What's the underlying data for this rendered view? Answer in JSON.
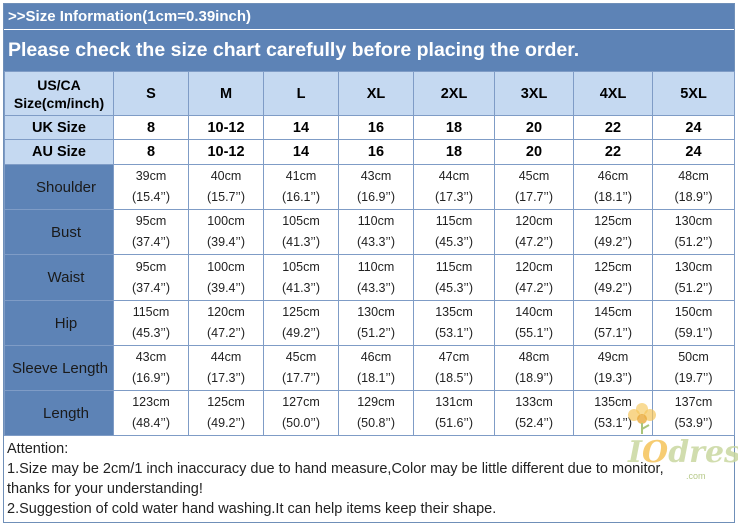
{
  "header": {
    "info_title": ">>Size Information(1cm=0.39inch)",
    "notice": "Please check the size chart carefully before placing the order."
  },
  "table": {
    "corner_line1": "US/CA",
    "corner_line2": "Size(cm/inch)",
    "sizes": [
      "S",
      "M",
      "L",
      "XL",
      "2XL",
      "3XL",
      "4XL",
      "5XL"
    ],
    "uk": {
      "label": "UK Size",
      "values": [
        "8",
        "10-12",
        "14",
        "16",
        "18",
        "20",
        "22",
        "24"
      ]
    },
    "au": {
      "label": "AU Size",
      "values": [
        "8",
        "10-12",
        "14",
        "16",
        "18",
        "20",
        "22",
        "24"
      ]
    },
    "measurements": [
      {
        "label": "Shoulder",
        "cm": [
          "39cm",
          "40cm",
          "41cm",
          "43cm",
          "44cm",
          "45cm",
          "46cm",
          "48cm"
        ],
        "inch": [
          "(15.4’’)",
          "(15.7’’)",
          "(16.1’’)",
          "(16.9’’)",
          "(17.3’’)",
          "(17.7’’)",
          "(18.1’’)",
          "(18.9’’)"
        ]
      },
      {
        "label": "Bust",
        "cm": [
          "95cm",
          "100cm",
          "105cm",
          "110cm",
          "115cm",
          "120cm",
          "125cm",
          "130cm"
        ],
        "inch": [
          "(37.4’’)",
          "(39.4’’)",
          "(41.3’’)",
          "(43.3’’)",
          "(45.3’’)",
          "(47.2’’)",
          "(49.2’’)",
          "(51.2’’)"
        ]
      },
      {
        "label": "Waist",
        "cm": [
          "95cm",
          "100cm",
          "105cm",
          "110cm",
          "115cm",
          "120cm",
          "125cm",
          "130cm"
        ],
        "inch": [
          "(37.4’’)",
          "(39.4’’)",
          "(41.3’’)",
          "(43.3’’)",
          "(45.3’’)",
          "(47.2’’)",
          "(49.2’’)",
          "(51.2’’)"
        ]
      },
      {
        "label": "Hip",
        "cm": [
          "115cm",
          "120cm",
          "125cm",
          "130cm",
          "135cm",
          "140cm",
          "145cm",
          "150cm"
        ],
        "inch": [
          "(45.3’’)",
          "(47.2’’)",
          "(49.2’’)",
          "(51.2’’)",
          "(53.1’’)",
          "(55.1’’)",
          "(57.1’’)",
          "(59.1’’)"
        ]
      },
      {
        "label": "Sleeve Length",
        "cm": [
          "43cm",
          "44cm",
          "45cm",
          "46cm",
          "47cm",
          "48cm",
          "49cm",
          "50cm"
        ],
        "inch": [
          "(16.9’’)",
          "(17.3’’)",
          "(17.7’’)",
          "(18.1’’)",
          "(18.5’’)",
          "(18.9’’)",
          "(19.3’’)",
          "(19.7’’)"
        ]
      },
      {
        "label": "Length",
        "cm": [
          "123cm",
          "125cm",
          "127cm",
          "129cm",
          "131cm",
          "133cm",
          "135cm",
          "137cm"
        ],
        "inch": [
          "(48.4’’)",
          "(49.2’’)",
          "(50.0’’)",
          "(50.8’’)",
          "(51.6’’)",
          "(52.4’’)",
          "(53.1’’)",
          "(53.9’’)"
        ]
      }
    ]
  },
  "notes": {
    "attention": "Attention:",
    "line1": "1.Size may be 2cm/1 inch inaccuracy due to hand measure,Color may be little different due to monitor,",
    "line2": "thanks for your understanding!",
    "line3": "2.Suggestion of cold water hand washing.It can help items keep their shape."
  },
  "watermark": {
    "brand_i": "I",
    "brand_o": "O",
    "brand_rest": "dress",
    "sub": ".com"
  },
  "colors": {
    "banner": "#5d83b6",
    "header_cells": "#c5d9f1",
    "grid": "#7f9cc6"
  }
}
